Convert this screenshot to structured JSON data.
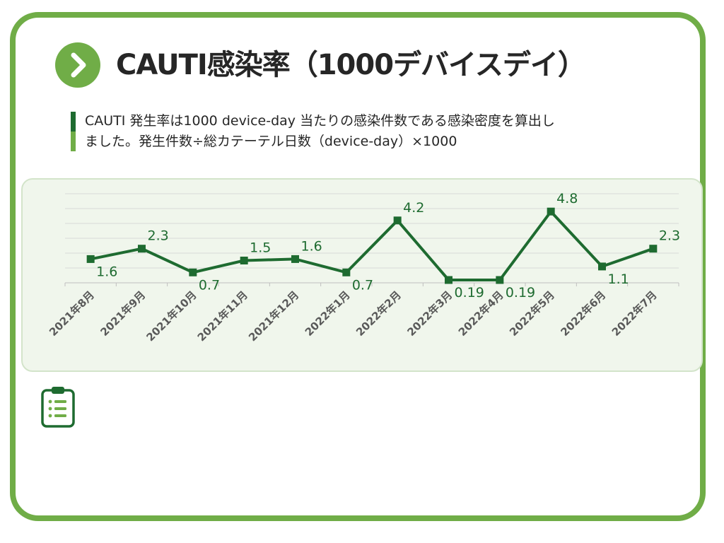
{
  "title": "CAUTI感染率（1000デバイスデイ）",
  "description": {
    "line1": "CAUTI 発生率は1000 device-day 当たりの感染件数である感染密度を算出し",
    "line2": "ました。発生件数÷総カテーテル日数（device-day）×1000"
  },
  "icons": {
    "title_badge": "chevron-right-icon",
    "bottom": "clipboard-list-icon"
  },
  "colors": {
    "frame": "#70ad47",
    "series": "#1e6b30",
    "label": "#1e6b30",
    "grid": "#d9d9d9"
  },
  "chart_data": {
    "type": "line",
    "categories": [
      "2021年8月",
      "2021年9月",
      "2021年10月",
      "2021年11月",
      "2021年12月",
      "2022年1月",
      "2022年2月",
      "2022年3月",
      "2022年4月",
      "2022年5月",
      "2022年6月",
      "2022年7月"
    ],
    "series": [
      {
        "values": [
          1.6,
          2.3,
          0.7,
          1.5,
          1.6,
          0.7,
          4.2,
          0.19,
          0.19,
          4.8,
          1.1,
          2.3
        ],
        "labels": [
          "1.6",
          "2.3",
          "0.7",
          "1.5",
          "1.6",
          "0.7",
          "4.2",
          "0.19",
          "0.19",
          "4.8",
          "1.1",
          "2.3"
        ]
      }
    ],
    "ylim": [
      0,
      6
    ],
    "grid": true,
    "legend": false,
    "title": "",
    "xlabel": "",
    "ylabel": ""
  }
}
